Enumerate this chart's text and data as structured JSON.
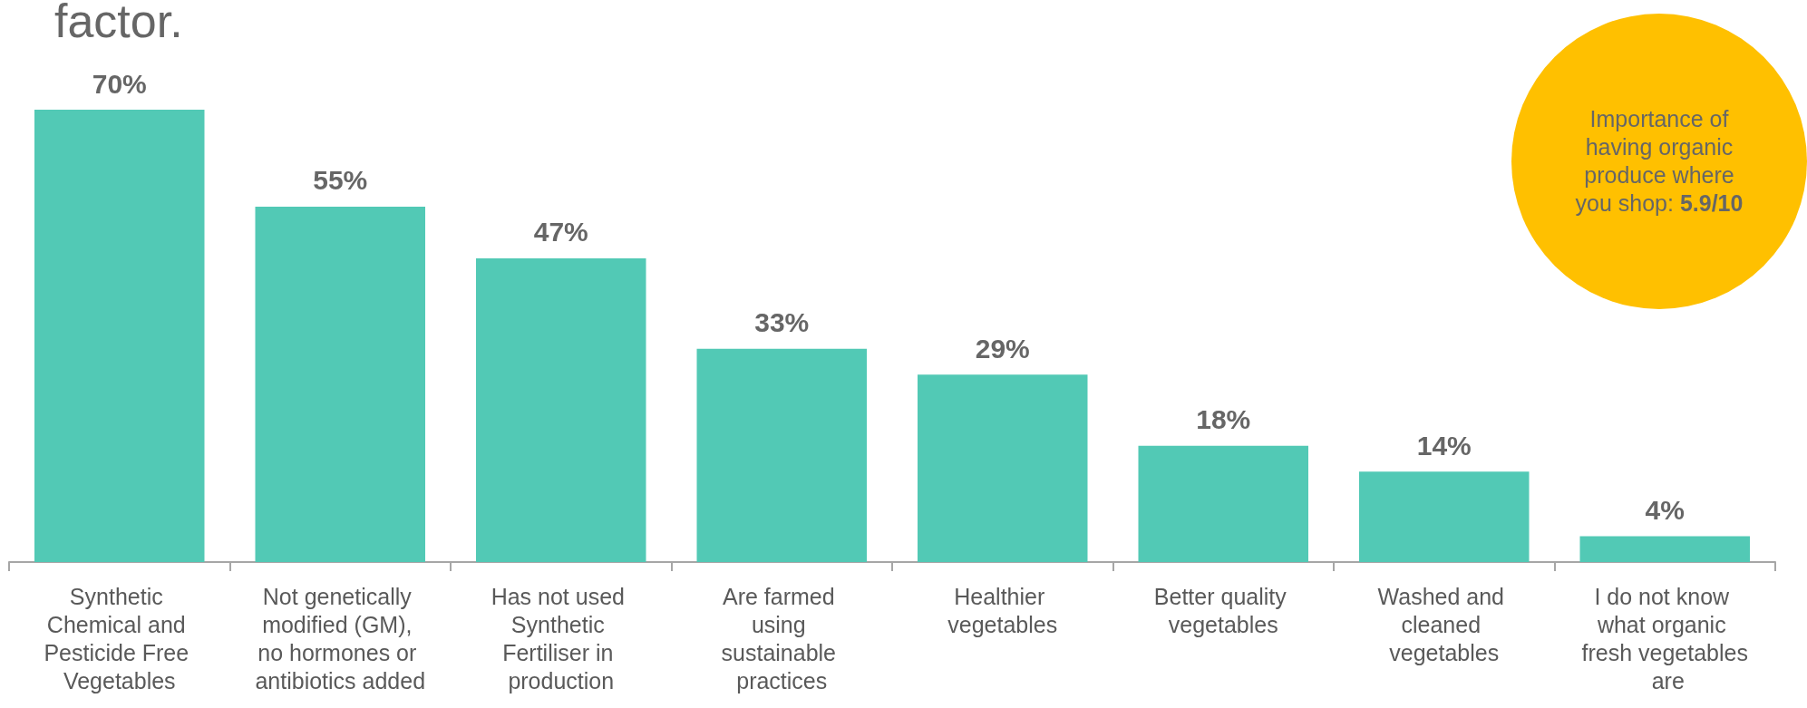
{
  "chart_data": {
    "type": "bar",
    "title": "factor.",
    "categories": [
      "Synthetic Chemical and Pesticide Free Vegetables",
      "Not genetically modified (GM), no hormones or antibiotics added",
      "Has not used Synthetic Fertiliser in production",
      "Are farmed using sustainable practices",
      "Healthier vegetables",
      "Better quality vegetables",
      "Washed and cleaned vegetables",
      "I do not know what organic fresh vegetables are"
    ],
    "values": [
      70,
      55,
      47,
      33,
      29,
      18,
      14,
      4
    ],
    "value_labels": [
      "70%",
      "55%",
      "47%",
      "33%",
      "29%",
      "18%",
      "14%",
      "4%"
    ],
    "color": "#52c9b5",
    "annotations": [
      "Importance of having organic produce where you shop: 5.9/10"
    ]
  }
}
